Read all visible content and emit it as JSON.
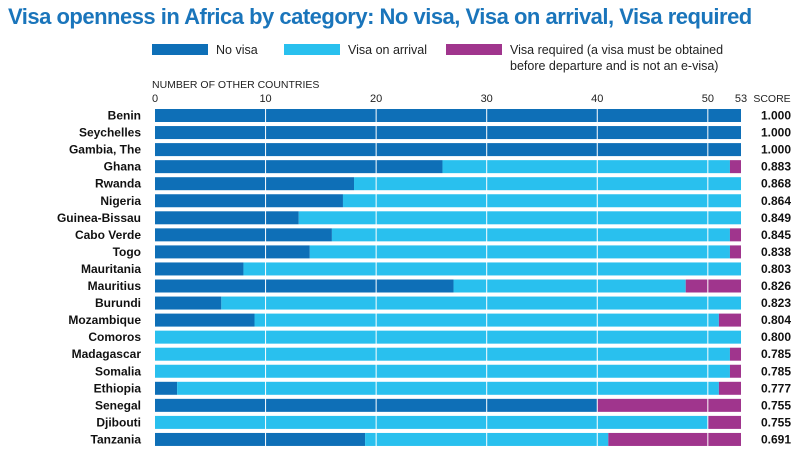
{
  "title": "Visa openness in Africa by category: No visa, Visa on arrival, Visa required",
  "colors": {
    "title": "#1a75bb",
    "no_visa": "#0e6fb7",
    "visa_on_arrival": "#29c0ee",
    "visa_required": "#a0358d",
    "grid": "#ffffff"
  },
  "legend": [
    {
      "key": "no_visa",
      "label": "No visa"
    },
    {
      "key": "visa_on_arrival",
      "label": "Visa on arrival"
    },
    {
      "key": "visa_required",
      "label": "Visa required (a visa must be obtained before departure and is not an e-visa)"
    }
  ],
  "chart_data": {
    "type": "bar",
    "orientation": "horizontal",
    "stacked": true,
    "title": "Visa openness in Africa by category: No visa, Visa on arrival, Visa required",
    "xlabel": "NUMBER OF OTHER COUNTRIES",
    "score_label": "SCORE",
    "xlim": [
      0,
      53
    ],
    "xticks": [
      0,
      10,
      20,
      30,
      40,
      50,
      53
    ],
    "categories": [
      "Benin",
      "Seychelles",
      "Gambia, The",
      "Ghana",
      "Rwanda",
      "Nigeria",
      "Guinea-Bissau",
      "Cabo Verde",
      "Togo",
      "Mauritania",
      "Mauritius",
      "Burundi",
      "Mozambique",
      "Comoros",
      "Madagascar",
      "Somalia",
      "Ethiopia",
      "Senegal",
      "Djibouti",
      "Tanzania"
    ],
    "series": [
      {
        "name": "No visa",
        "values": [
          53,
          53,
          53,
          26,
          18,
          17,
          13,
          16,
          14,
          8,
          27,
          6,
          9,
          0,
          0,
          0,
          2,
          40,
          0,
          19
        ]
      },
      {
        "name": "Visa on arrival",
        "values": [
          0,
          0,
          0,
          26,
          35,
          36,
          40,
          36,
          38,
          45,
          21,
          47,
          42,
          53,
          52,
          52,
          49,
          0,
          50,
          22
        ]
      },
      {
        "name": "Visa required",
        "values": [
          0,
          0,
          0,
          1,
          0,
          0,
          0,
          1,
          1,
          0,
          5,
          0,
          2,
          0,
          1,
          1,
          2,
          13,
          3,
          12
        ]
      }
    ],
    "scores": [
      "1.000",
      "1.000",
      "1.000",
      "0.883",
      "0.868",
      "0.864",
      "0.849",
      "0.845",
      "0.838",
      "0.803",
      "0.826",
      "0.823",
      "0.804",
      "0.800",
      "0.785",
      "0.785",
      "0.777",
      "0.755",
      "0.755",
      "0.691"
    ],
    "legend_position": "top"
  }
}
